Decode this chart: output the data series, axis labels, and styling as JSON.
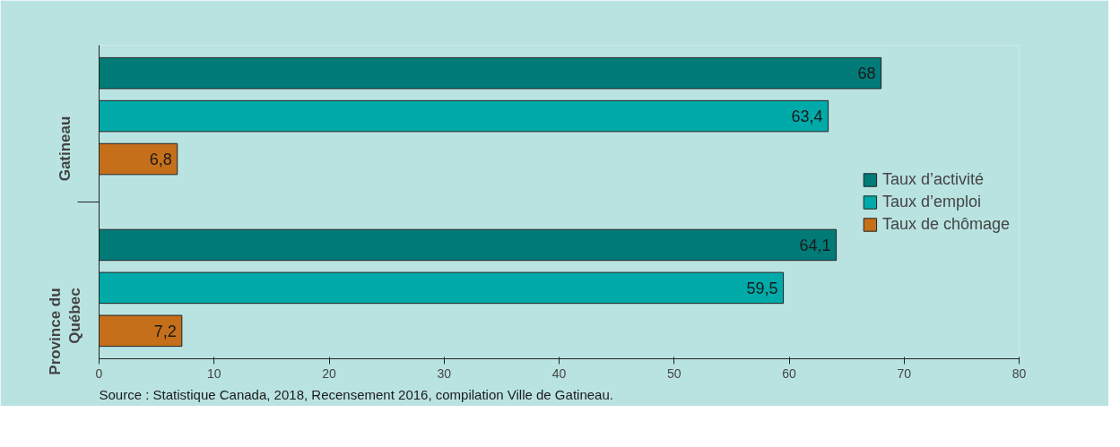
{
  "chart_data": {
    "type": "bar",
    "orientation": "horizontal",
    "categories": [
      "Gatineau",
      "Province du Québec"
    ],
    "series": [
      {
        "name": "Taux d’activité",
        "color": "#007b78",
        "values": [
          68,
          64.1
        ],
        "value_labels": [
          "68",
          "64,1"
        ]
      },
      {
        "name": "Taux d’emploi",
        "color": "#00aaa9",
        "values": [
          63.4,
          59.5
        ],
        "value_labels": [
          "63,4",
          "59,5"
        ]
      },
      {
        "name": "Taux de chômage",
        "color": "#c56f1a",
        "values": [
          6.8,
          7.2
        ],
        "value_labels": [
          "6,8",
          "7,2"
        ]
      }
    ],
    "xlim": [
      0,
      80
    ],
    "xticks": [
      0,
      10,
      20,
      30,
      40,
      50,
      60,
      70,
      80
    ],
    "grid": false,
    "legend": "right",
    "annotations": [
      "Source : Statistique Canada, 2018, Recensement 2016, compilation Ville de Gatineau."
    ]
  }
}
